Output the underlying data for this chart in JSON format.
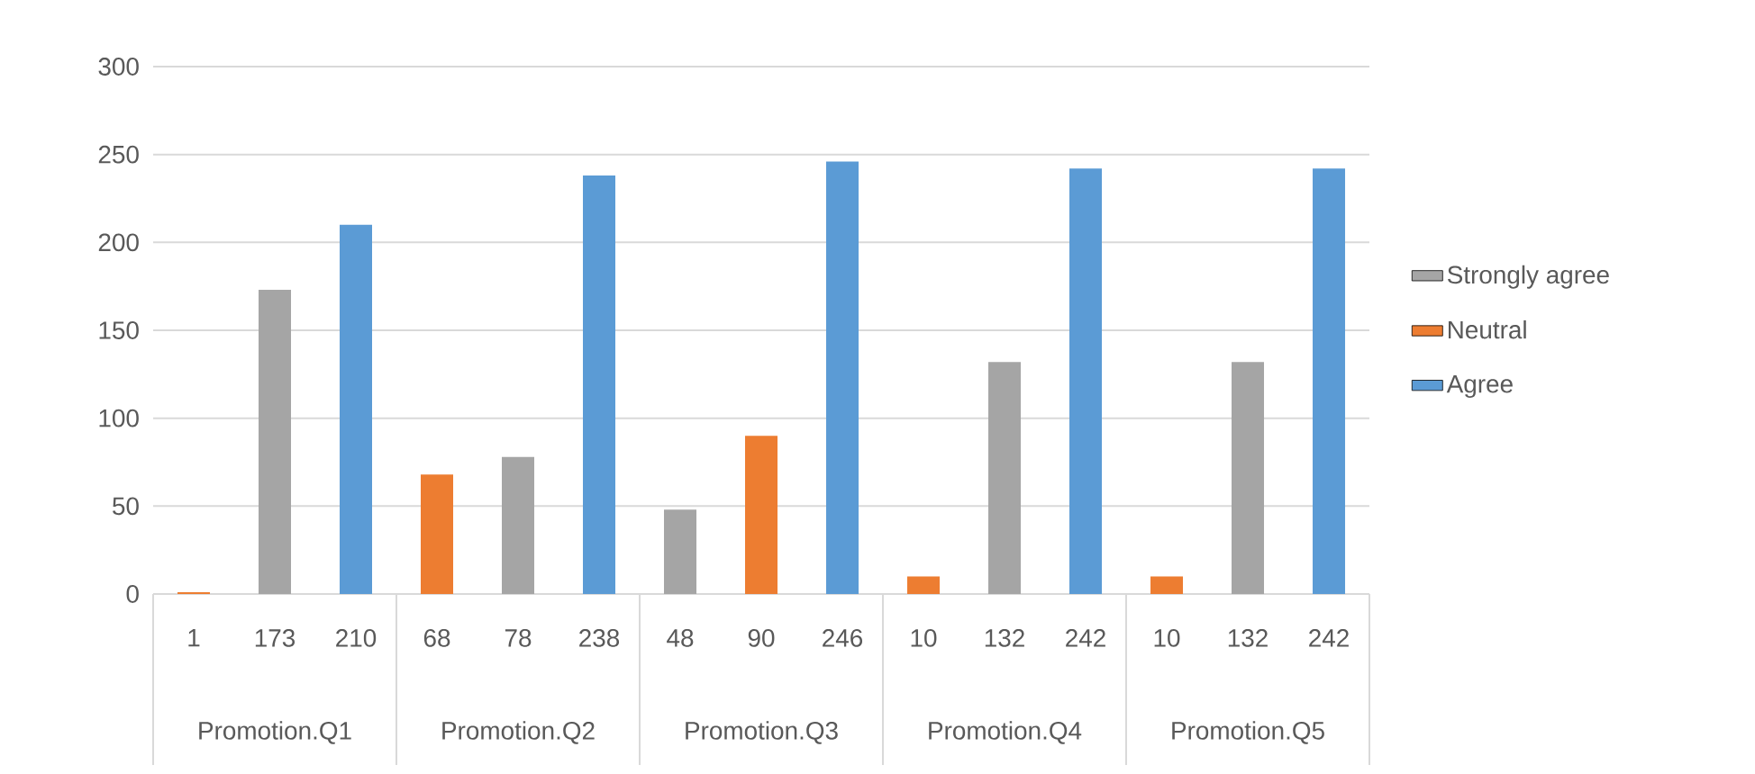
{
  "chart_data": {
    "type": "bar",
    "categories": [
      "1",
      "173",
      "210",
      "68",
      "78",
      "238",
      "48",
      "90",
      "246",
      "10",
      "132",
      "242",
      "10",
      "132",
      "242"
    ],
    "series": [
      {
        "name": "Strongly agree",
        "color": "#a5a5a5",
        "values": [
          null,
          173,
          null,
          null,
          78,
          null,
          48,
          null,
          null,
          null,
          132,
          null,
          null,
          132,
          null
        ]
      },
      {
        "name": "Neutral",
        "color": "#ed7d31",
        "values": [
          1,
          null,
          null,
          68,
          null,
          null,
          null,
          90,
          null,
          10,
          null,
          null,
          10,
          null,
          null
        ]
      },
      {
        "name": "Agree",
        "color": "#5b9bd5",
        "values": [
          null,
          null,
          210,
          null,
          null,
          238,
          null,
          null,
          246,
          null,
          null,
          242,
          null,
          null,
          242
        ]
      }
    ],
    "annotations": [
      "Promotion.Q1",
      "Promotion.Q2",
      "Promotion.Q3",
      "Promotion.Q4",
      "Promotion.Q5"
    ],
    "ylim": [
      0,
      300
    ],
    "yticks": [
      0,
      50,
      100,
      150,
      200,
      250,
      300
    ],
    "grid": "y",
    "legend": "right"
  }
}
